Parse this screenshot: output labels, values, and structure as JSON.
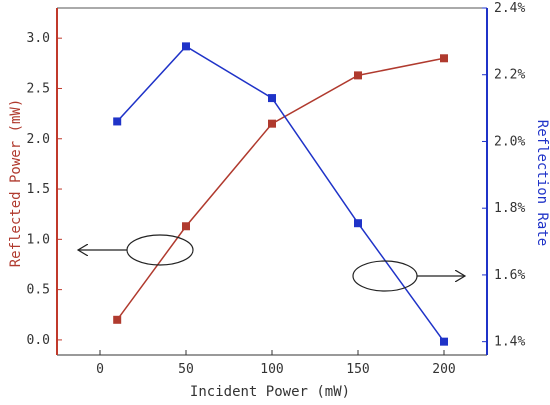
{
  "chart_data": {
    "type": "line",
    "xlabel": "Incident Power (mW)",
    "ylabel_left": "Reflected Power (mW)",
    "ylabel_right": "Reflection Rate",
    "x_ticks": [
      "0",
      "50",
      "100",
      "150",
      "200"
    ],
    "x_range": [
      -25,
      225
    ],
    "left_ticks": [
      "0.0",
      "0.5",
      "1.0",
      "1.5",
      "2.0",
      "2.5",
      "3.0"
    ],
    "left_range": [
      -0.15,
      3.3
    ],
    "right_ticks": [
      "1.4%",
      "1.6%",
      "1.8%",
      "2.0%",
      "2.2%",
      "2.4%"
    ],
    "right_range": [
      1.36,
      2.4
    ],
    "series": [
      {
        "axis": "left",
        "color": "#b03a2e",
        "x": [
          10,
          50,
          100,
          150,
          200
        ],
        "values": [
          0.2,
          1.13,
          2.15,
          2.63,
          2.8
        ]
      },
      {
        "axis": "right",
        "color": "#1f33c8",
        "x": [
          10,
          50,
          100,
          150,
          200
        ],
        "values": [
          2.06,
          2.285,
          2.13,
          1.755,
          1.4
        ]
      }
    ],
    "grid": false,
    "annotations": [
      {
        "type": "ellipse-arrow",
        "points_to": "left",
        "series_axis": "left"
      },
      {
        "type": "ellipse-arrow",
        "points_to": "right",
        "series_axis": "right"
      }
    ],
    "left_axis_color": "#c0392b",
    "right_axis_color": "#1f33c8"
  }
}
